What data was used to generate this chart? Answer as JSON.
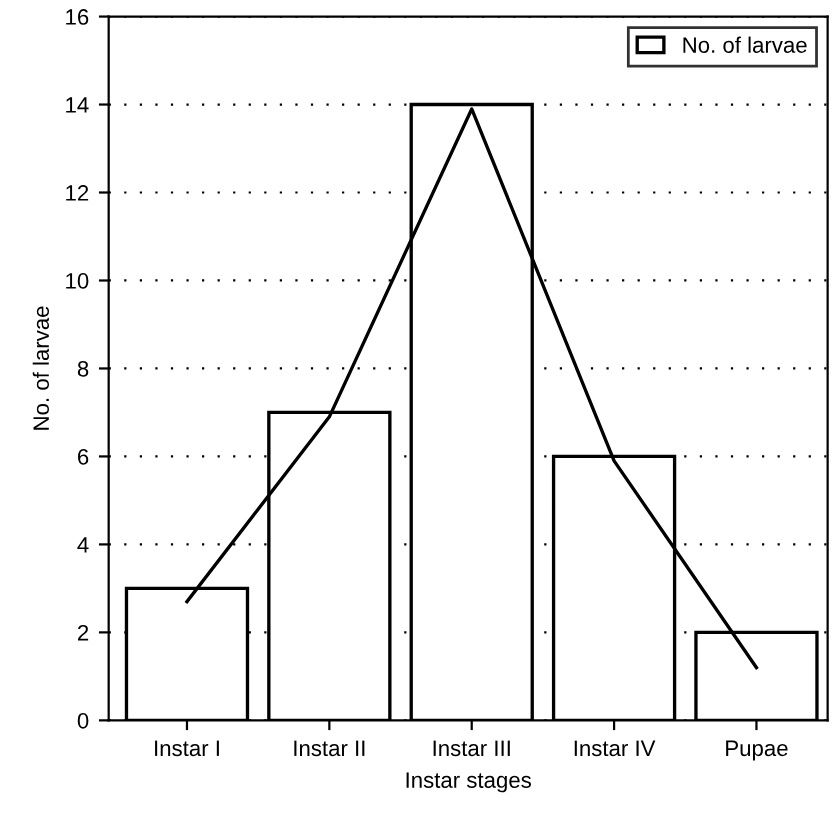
{
  "chart_data": {
    "type": "bar",
    "xlabel": "Instar stages",
    "ylabel": "No. of larvae",
    "categories": [
      "Instar I",
      "Instar II",
      "Instar III",
      "Instar IV",
      "Pupae"
    ],
    "series": [
      {
        "name": "No. of larvae",
        "color": "#ffffff",
        "values": [
          3,
          7,
          14,
          6,
          2
        ]
      },
      {
        "type": "line",
        "color": "#000000",
        "values": [
          2.7,
          6.9,
          13.9,
          5.9,
          1.2
        ]
      }
    ],
    "ylim": [
      0,
      16
    ],
    "yticks": [
      0,
      2,
      4,
      6,
      8,
      10,
      12,
      14,
      16
    ],
    "grid": "y",
    "legend": "top right"
  }
}
